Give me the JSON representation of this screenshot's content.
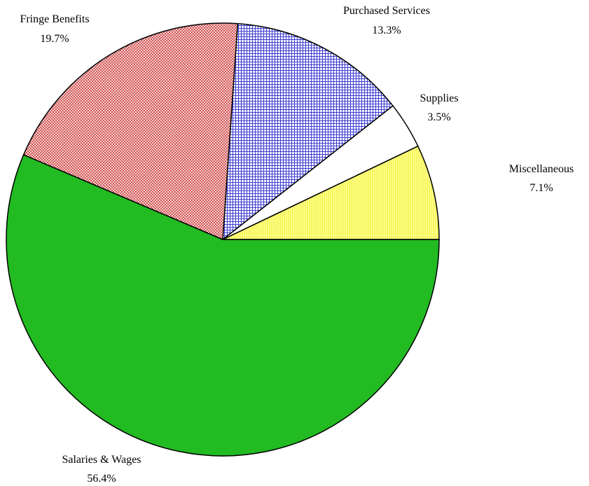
{
  "chart_data": {
    "type": "pie",
    "slices": [
      {
        "category": "Miscellaneous",
        "value": 7.1,
        "label": "7.1%",
        "color": "#ffff66",
        "pattern": "vertical-hatch"
      },
      {
        "category": "Supplies",
        "value": 3.5,
        "label": "3.5%",
        "color": "#ffffff",
        "pattern": "none"
      },
      {
        "category": "Purchased Services",
        "value": 13.3,
        "label": "13.3%",
        "color": "#3333cc",
        "pattern": "crosshatch"
      },
      {
        "category": "Fringe Benefits",
        "value": 19.7,
        "label": "19.7%",
        "color": "#cc3333",
        "pattern": "diagonal-crosshatch"
      },
      {
        "category": "Salaries & Wages",
        "value": 56.4,
        "label": "56.4%",
        "color": "#22bb22",
        "pattern": "solid"
      }
    ],
    "start_angle_deg": 0,
    "direction": "counterclockwise",
    "outline_color": "#000000",
    "legend": "none"
  }
}
